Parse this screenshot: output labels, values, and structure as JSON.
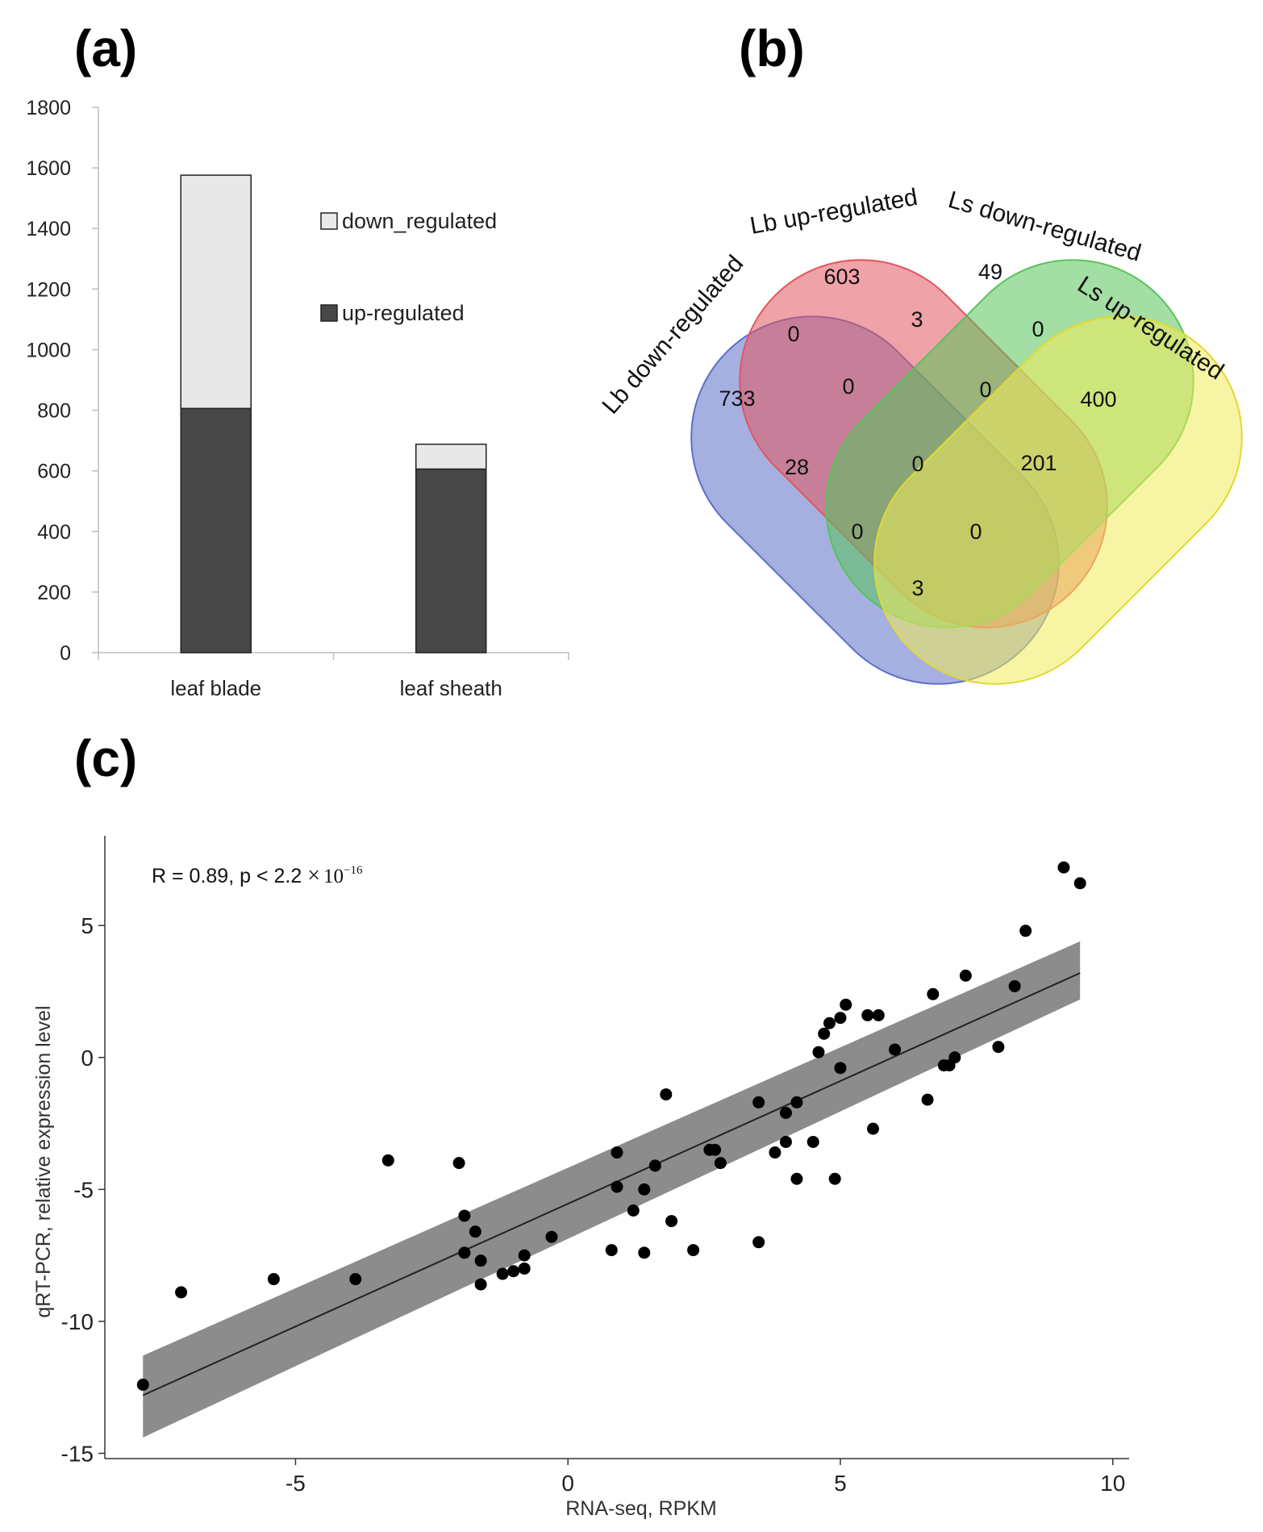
{
  "panels": {
    "a": "(a)",
    "b": "(b)",
    "c": "(c)"
  },
  "chart_data": [
    {
      "type": "bar",
      "stacked": true,
      "categories": [
        "leaf blade",
        "leaf sheath"
      ],
      "ylim": [
        0,
        1800
      ],
      "yticks": [
        0,
        200,
        400,
        600,
        800,
        1000,
        1200,
        1400,
        1600,
        1800
      ],
      "legend_position": "top-right",
      "series": [
        {
          "name": "up-regulated",
          "values": [
            806,
            606
          ],
          "color": "#474747"
        },
        {
          "name": "down_regulated",
          "values": [
            770,
            82
          ],
          "color": "#e8e8e8"
        }
      ]
    },
    {
      "type": "venn",
      "sets": [
        {
          "name": "Lb down-regulated",
          "color": "#5b6fc9"
        },
        {
          "name": "Lb up-regulated",
          "color": "#e2555f"
        },
        {
          "name": "Ls down-regulated",
          "color": "#58c35a"
        },
        {
          "name": "Ls up-regulated",
          "color": "#f0eb5a"
        }
      ],
      "regions": [
        {
          "sets": [
            "Lb down-regulated"
          ],
          "value": "733"
        },
        {
          "sets": [
            "Lb up-regulated"
          ],
          "value": "603"
        },
        {
          "sets": [
            "Ls down-regulated"
          ],
          "value": "49"
        },
        {
          "sets": [
            "Ls up-regulated"
          ],
          "value": "400"
        },
        {
          "sets": [
            "Lb down-regulated",
            "Lb up-regulated"
          ],
          "value": "0"
        },
        {
          "sets": [
            "Lb up-regulated",
            "Ls down-regulated"
          ],
          "value": "3"
        },
        {
          "sets": [
            "Ls down-regulated",
            "Ls up-regulated"
          ],
          "value": "0"
        },
        {
          "sets": [
            "Lb down-regulated",
            "Lb up-regulated",
            "Ls down-regulated"
          ],
          "value": "0"
        },
        {
          "sets": [
            "Lb up-regulated",
            "Ls down-regulated",
            "Ls up-regulated"
          ],
          "value": "0"
        },
        {
          "sets": [
            "Lb down-regulated",
            "Ls down-regulated"
          ],
          "value": "28"
        },
        {
          "sets": [
            "Lb down-regulated",
            "Lb up-regulated",
            "Ls down-regulated",
            "Ls up-regulated"
          ],
          "value": "0"
        },
        {
          "sets": [
            "Lb up-regulated",
            "Ls up-regulated"
          ],
          "value": "201"
        },
        {
          "sets": [
            "Lb down-regulated",
            "Ls down-regulated",
            "Ls up-regulated"
          ],
          "value": "0"
        },
        {
          "sets": [
            "Lb down-regulated",
            "Lb up-regulated",
            "Ls up-regulated"
          ],
          "value": "0"
        },
        {
          "sets": [
            "Lb down-regulated",
            "Ls up-regulated"
          ],
          "value": "3"
        }
      ]
    },
    {
      "type": "scatter",
      "xlabel": "RNA-seq, RPKM",
      "ylabel": "qRT-PCR, relative expression level",
      "xlim": [
        -8.5,
        10.3
      ],
      "ylim": [
        -15.2,
        8.4
      ],
      "xticks": [
        -5,
        0,
        5,
        10
      ],
      "yticks": [
        5,
        0,
        -5,
        -10,
        -15
      ],
      "annotation": {
        "text": "R = 0.89, p < 2.2 ",
        "times": "×",
        "base": "10",
        "exp": "−16"
      },
      "fit": {
        "x": [
          -7.8,
          9.4
        ],
        "y": [
          -12.8,
          3.2
        ],
        "ci_low": [
          -14.4,
          2.2
        ],
        "ci_high": [
          -11.3,
          4.4
        ]
      },
      "points": [
        [
          -7.8,
          -12.4
        ],
        [
          -7.1,
          -8.9
        ],
        [
          -5.4,
          -8.4
        ],
        [
          -3.9,
          -8.4
        ],
        [
          -3.3,
          -3.9
        ],
        [
          -2.0,
          -4.0
        ],
        [
          -1.9,
          -6.0
        ],
        [
          -1.9,
          -7.4
        ],
        [
          -1.7,
          -6.6
        ],
        [
          -1.6,
          -7.7
        ],
        [
          -1.6,
          -8.6
        ],
        [
          -1.2,
          -8.2
        ],
        [
          -1.0,
          -8.1
        ],
        [
          -0.8,
          -7.5
        ],
        [
          -0.8,
          -8.0
        ],
        [
          -0.3,
          -6.8
        ],
        [
          0.8,
          -7.3
        ],
        [
          0.9,
          -3.6
        ],
        [
          0.9,
          -4.9
        ],
        [
          1.2,
          -5.8
        ],
        [
          1.4,
          -5.0
        ],
        [
          1.4,
          -7.4
        ],
        [
          1.6,
          -4.1
        ],
        [
          1.8,
          -1.4
        ],
        [
          1.9,
          -6.2
        ],
        [
          2.3,
          -7.3
        ],
        [
          2.6,
          -3.5
        ],
        [
          2.7,
          -3.5
        ],
        [
          2.8,
          -4.0
        ],
        [
          3.5,
          -1.7
        ],
        [
          3.5,
          -7.0
        ],
        [
          3.8,
          -3.6
        ],
        [
          4.0,
          -2.1
        ],
        [
          4.0,
          -3.2
        ],
        [
          4.2,
          -1.7
        ],
        [
          4.2,
          -4.6
        ],
        [
          4.5,
          -3.2
        ],
        [
          4.6,
          0.2
        ],
        [
          4.7,
          0.9
        ],
        [
          4.8,
          1.3
        ],
        [
          4.9,
          -4.6
        ],
        [
          5.0,
          1.5
        ],
        [
          5.0,
          -0.4
        ],
        [
          5.1,
          2.0
        ],
        [
          5.5,
          1.6
        ],
        [
          5.6,
          -2.7
        ],
        [
          5.7,
          1.6
        ],
        [
          6.0,
          0.3
        ],
        [
          6.6,
          -1.6
        ],
        [
          6.7,
          2.4
        ],
        [
          6.9,
          -0.3
        ],
        [
          7.0,
          -0.3
        ],
        [
          7.1,
          0.0
        ],
        [
          7.3,
          3.1
        ],
        [
          7.9,
          0.4
        ],
        [
          8.2,
          2.7
        ],
        [
          8.4,
          4.8
        ],
        [
          9.1,
          7.2
        ],
        [
          9.4,
          6.6
        ]
      ]
    }
  ]
}
